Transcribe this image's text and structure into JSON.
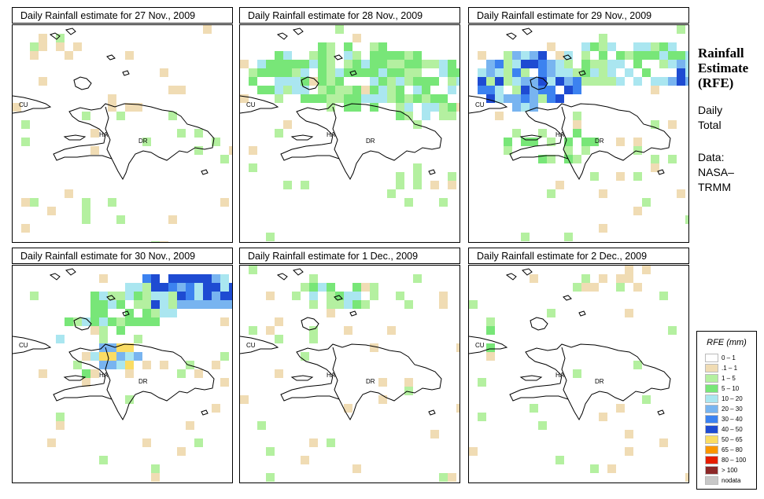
{
  "panels": [
    {
      "title": "Daily Rainfall estimate for  27 Nov., 2009"
    },
    {
      "title": "Daily Rainfall estimate for  28 Nov., 2009"
    },
    {
      "title": "Daily Rainfall estimate for  29 Nov., 2009"
    },
    {
      "title": "Daily Rainfall estimate for  30 Nov., 2009"
    },
    {
      "title": "Daily Rainfall estimate for  1 Dec., 2009"
    },
    {
      "title": "Daily Rainfall estimate for  2 Dec., 2009"
    }
  ],
  "map_labels": {
    "cuba": "CU",
    "haiti": "HA",
    "dominican_republic": "DR"
  },
  "side": {
    "title_line1": "Rainfall",
    "title_line2": "Estimate",
    "title_line3": "(RFE)",
    "period_line1": "Daily",
    "period_line2": "Total",
    "data_line1": "Data:",
    "data_line2": "NASA–",
    "data_line3": "TRMM"
  },
  "legend": {
    "title": "RFE (mm)",
    "items": [
      {
        "label": "0 – 1",
        "color": "#ffffff"
      },
      {
        "label": ".1 – 1",
        "color": "#f0dcb4"
      },
      {
        "label": "1 – 5",
        "color": "#b4f0a0"
      },
      {
        "label": "5 – 10",
        "color": "#78e678"
      },
      {
        "label": "10 – 20",
        "color": "#aae6f0"
      },
      {
        "label": "20 – 30",
        "color": "#78b4f0"
      },
      {
        "label": "30 – 40",
        "color": "#3c82f0"
      },
      {
        "label": "40 – 50",
        "color": "#1e4bd2"
      },
      {
        "label": "50 – 65",
        "color": "#fadc64"
      },
      {
        "label": "65 – 80",
        "color": "#fa9600"
      },
      {
        "label": "80 – 100",
        "color": "#e61e00"
      },
      {
        "label": "> 100",
        "color": "#8c2828"
      },
      {
        "label": "nodata",
        "color": "#c8c8c8"
      }
    ]
  }
}
